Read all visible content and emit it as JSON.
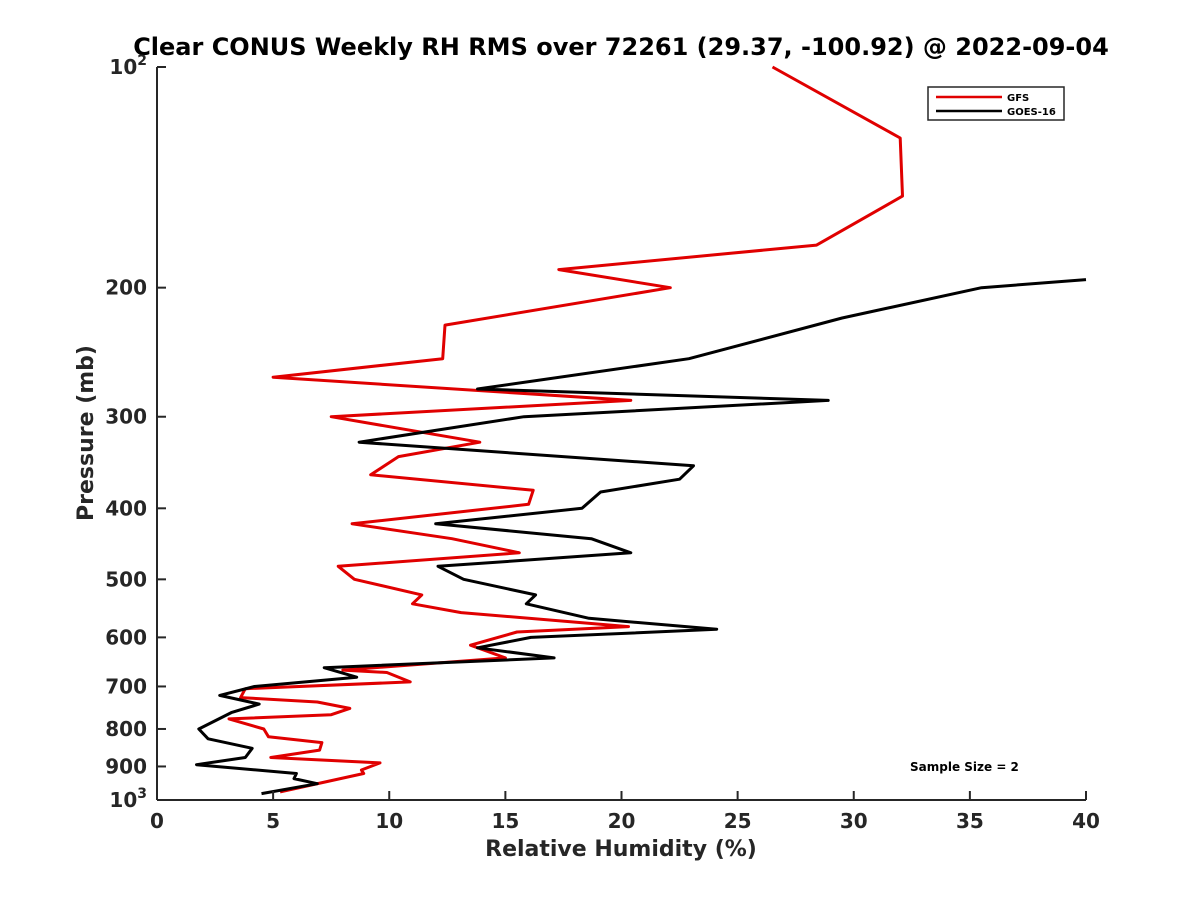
{
  "chart_data": {
    "type": "line",
    "title": "Clear CONUS Weekly RH RMS over 72261 (29.37, -100.92) @ 2022-09-04",
    "xlabel": "Relative Humidity (%)",
    "ylabel": "Pressure (mb)",
    "xlim": [
      0,
      40
    ],
    "ylim": [
      100,
      1000
    ],
    "y_scale": "log",
    "y_reversed": true,
    "x_ticks": [
      0,
      5,
      10,
      15,
      20,
      25,
      30,
      35,
      40
    ],
    "x_tick_labels": [
      "0",
      "5",
      "10",
      "15",
      "20",
      "25",
      "30",
      "35",
      "40"
    ],
    "y_ticks": [
      100,
      200,
      300,
      400,
      500,
      600,
      700,
      800,
      900,
      1000
    ],
    "y_tick_labels": [
      {
        "base": "10",
        "exp": "2"
      },
      {
        "base": "200",
        "exp": ""
      },
      {
        "base": "300",
        "exp": ""
      },
      {
        "base": "400",
        "exp": ""
      },
      {
        "base": "500",
        "exp": ""
      },
      {
        "base": "600",
        "exp": ""
      },
      {
        "base": "700",
        "exp": ""
      },
      {
        "base": "800",
        "exp": ""
      },
      {
        "base": "900",
        "exp": ""
      },
      {
        "base": "10",
        "exp": "3"
      }
    ],
    "grid": false,
    "legend_position": "top-right",
    "annotation": "Sample Size = 2",
    "series": [
      {
        "name": "GFS",
        "color": "#e00000",
        "points": [
          {
            "x": 26.5,
            "y": 100
          },
          {
            "x": 32.0,
            "y": 125
          },
          {
            "x": 32.1,
            "y": 150
          },
          {
            "x": 28.4,
            "y": 175
          },
          {
            "x": 17.3,
            "y": 189
          },
          {
            "x": 22.1,
            "y": 200
          },
          {
            "x": 12.4,
            "y": 225
          },
          {
            "x": 12.3,
            "y": 250
          },
          {
            "x": 5.0,
            "y": 265
          },
          {
            "x": 20.4,
            "y": 285
          },
          {
            "x": 7.5,
            "y": 300
          },
          {
            "x": 13.9,
            "y": 325
          },
          {
            "x": 10.4,
            "y": 340
          },
          {
            "x": 9.2,
            "y": 360
          },
          {
            "x": 16.2,
            "y": 378
          },
          {
            "x": 16.0,
            "y": 395
          },
          {
            "x": 8.4,
            "y": 420
          },
          {
            "x": 12.7,
            "y": 440
          },
          {
            "x": 15.6,
            "y": 460
          },
          {
            "x": 7.8,
            "y": 480
          },
          {
            "x": 8.5,
            "y": 500
          },
          {
            "x": 11.4,
            "y": 525
          },
          {
            "x": 11.0,
            "y": 540
          },
          {
            "x": 13.1,
            "y": 555
          },
          {
            "x": 20.3,
            "y": 580
          },
          {
            "x": 15.5,
            "y": 590
          },
          {
            "x": 13.5,
            "y": 615
          },
          {
            "x": 15.0,
            "y": 640
          },
          {
            "x": 8.0,
            "y": 665
          },
          {
            "x": 9.9,
            "y": 670
          },
          {
            "x": 10.9,
            "y": 690
          },
          {
            "x": 3.8,
            "y": 705
          },
          {
            "x": 3.6,
            "y": 725
          },
          {
            "x": 6.9,
            "y": 735
          },
          {
            "x": 8.3,
            "y": 750
          },
          {
            "x": 7.5,
            "y": 765
          },
          {
            "x": 3.1,
            "y": 775
          },
          {
            "x": 4.6,
            "y": 800
          },
          {
            "x": 4.8,
            "y": 820
          },
          {
            "x": 7.1,
            "y": 835
          },
          {
            "x": 7.0,
            "y": 855
          },
          {
            "x": 4.9,
            "y": 875
          },
          {
            "x": 9.6,
            "y": 890
          },
          {
            "x": 8.8,
            "y": 910
          },
          {
            "x": 8.9,
            "y": 920
          },
          {
            "x": 5.3,
            "y": 975
          }
        ]
      },
      {
        "name": "GOES-16",
        "color": "#000000",
        "points": [
          {
            "x": 40.0,
            "y": 195
          },
          {
            "x": 35.5,
            "y": 200
          },
          {
            "x": 29.5,
            "y": 220
          },
          {
            "x": 22.9,
            "y": 250
          },
          {
            "x": 13.8,
            "y": 275
          },
          {
            "x": 28.9,
            "y": 285
          },
          {
            "x": 15.8,
            "y": 300
          },
          {
            "x": 8.7,
            "y": 325
          },
          {
            "x": 23.1,
            "y": 350
          },
          {
            "x": 22.5,
            "y": 365
          },
          {
            "x": 19.1,
            "y": 380
          },
          {
            "x": 18.3,
            "y": 400
          },
          {
            "x": 12.0,
            "y": 420
          },
          {
            "x": 18.7,
            "y": 440
          },
          {
            "x": 20.4,
            "y": 460
          },
          {
            "x": 12.1,
            "y": 480
          },
          {
            "x": 13.2,
            "y": 500
          },
          {
            "x": 16.3,
            "y": 525
          },
          {
            "x": 15.9,
            "y": 540
          },
          {
            "x": 18.6,
            "y": 565
          },
          {
            "x": 24.1,
            "y": 585
          },
          {
            "x": 16.1,
            "y": 600
          },
          {
            "x": 13.8,
            "y": 620
          },
          {
            "x": 17.1,
            "y": 640
          },
          {
            "x": 7.2,
            "y": 660
          },
          {
            "x": 8.6,
            "y": 680
          },
          {
            "x": 4.2,
            "y": 700
          },
          {
            "x": 2.7,
            "y": 720
          },
          {
            "x": 4.4,
            "y": 740
          },
          {
            "x": 3.2,
            "y": 760
          },
          {
            "x": 1.8,
            "y": 800
          },
          {
            "x": 2.2,
            "y": 825
          },
          {
            "x": 4.1,
            "y": 850
          },
          {
            "x": 3.8,
            "y": 875
          },
          {
            "x": 1.7,
            "y": 895
          },
          {
            "x": 6.0,
            "y": 920
          },
          {
            "x": 5.9,
            "y": 935
          },
          {
            "x": 6.9,
            "y": 950
          },
          {
            "x": 4.5,
            "y": 980
          }
        ]
      }
    ]
  }
}
